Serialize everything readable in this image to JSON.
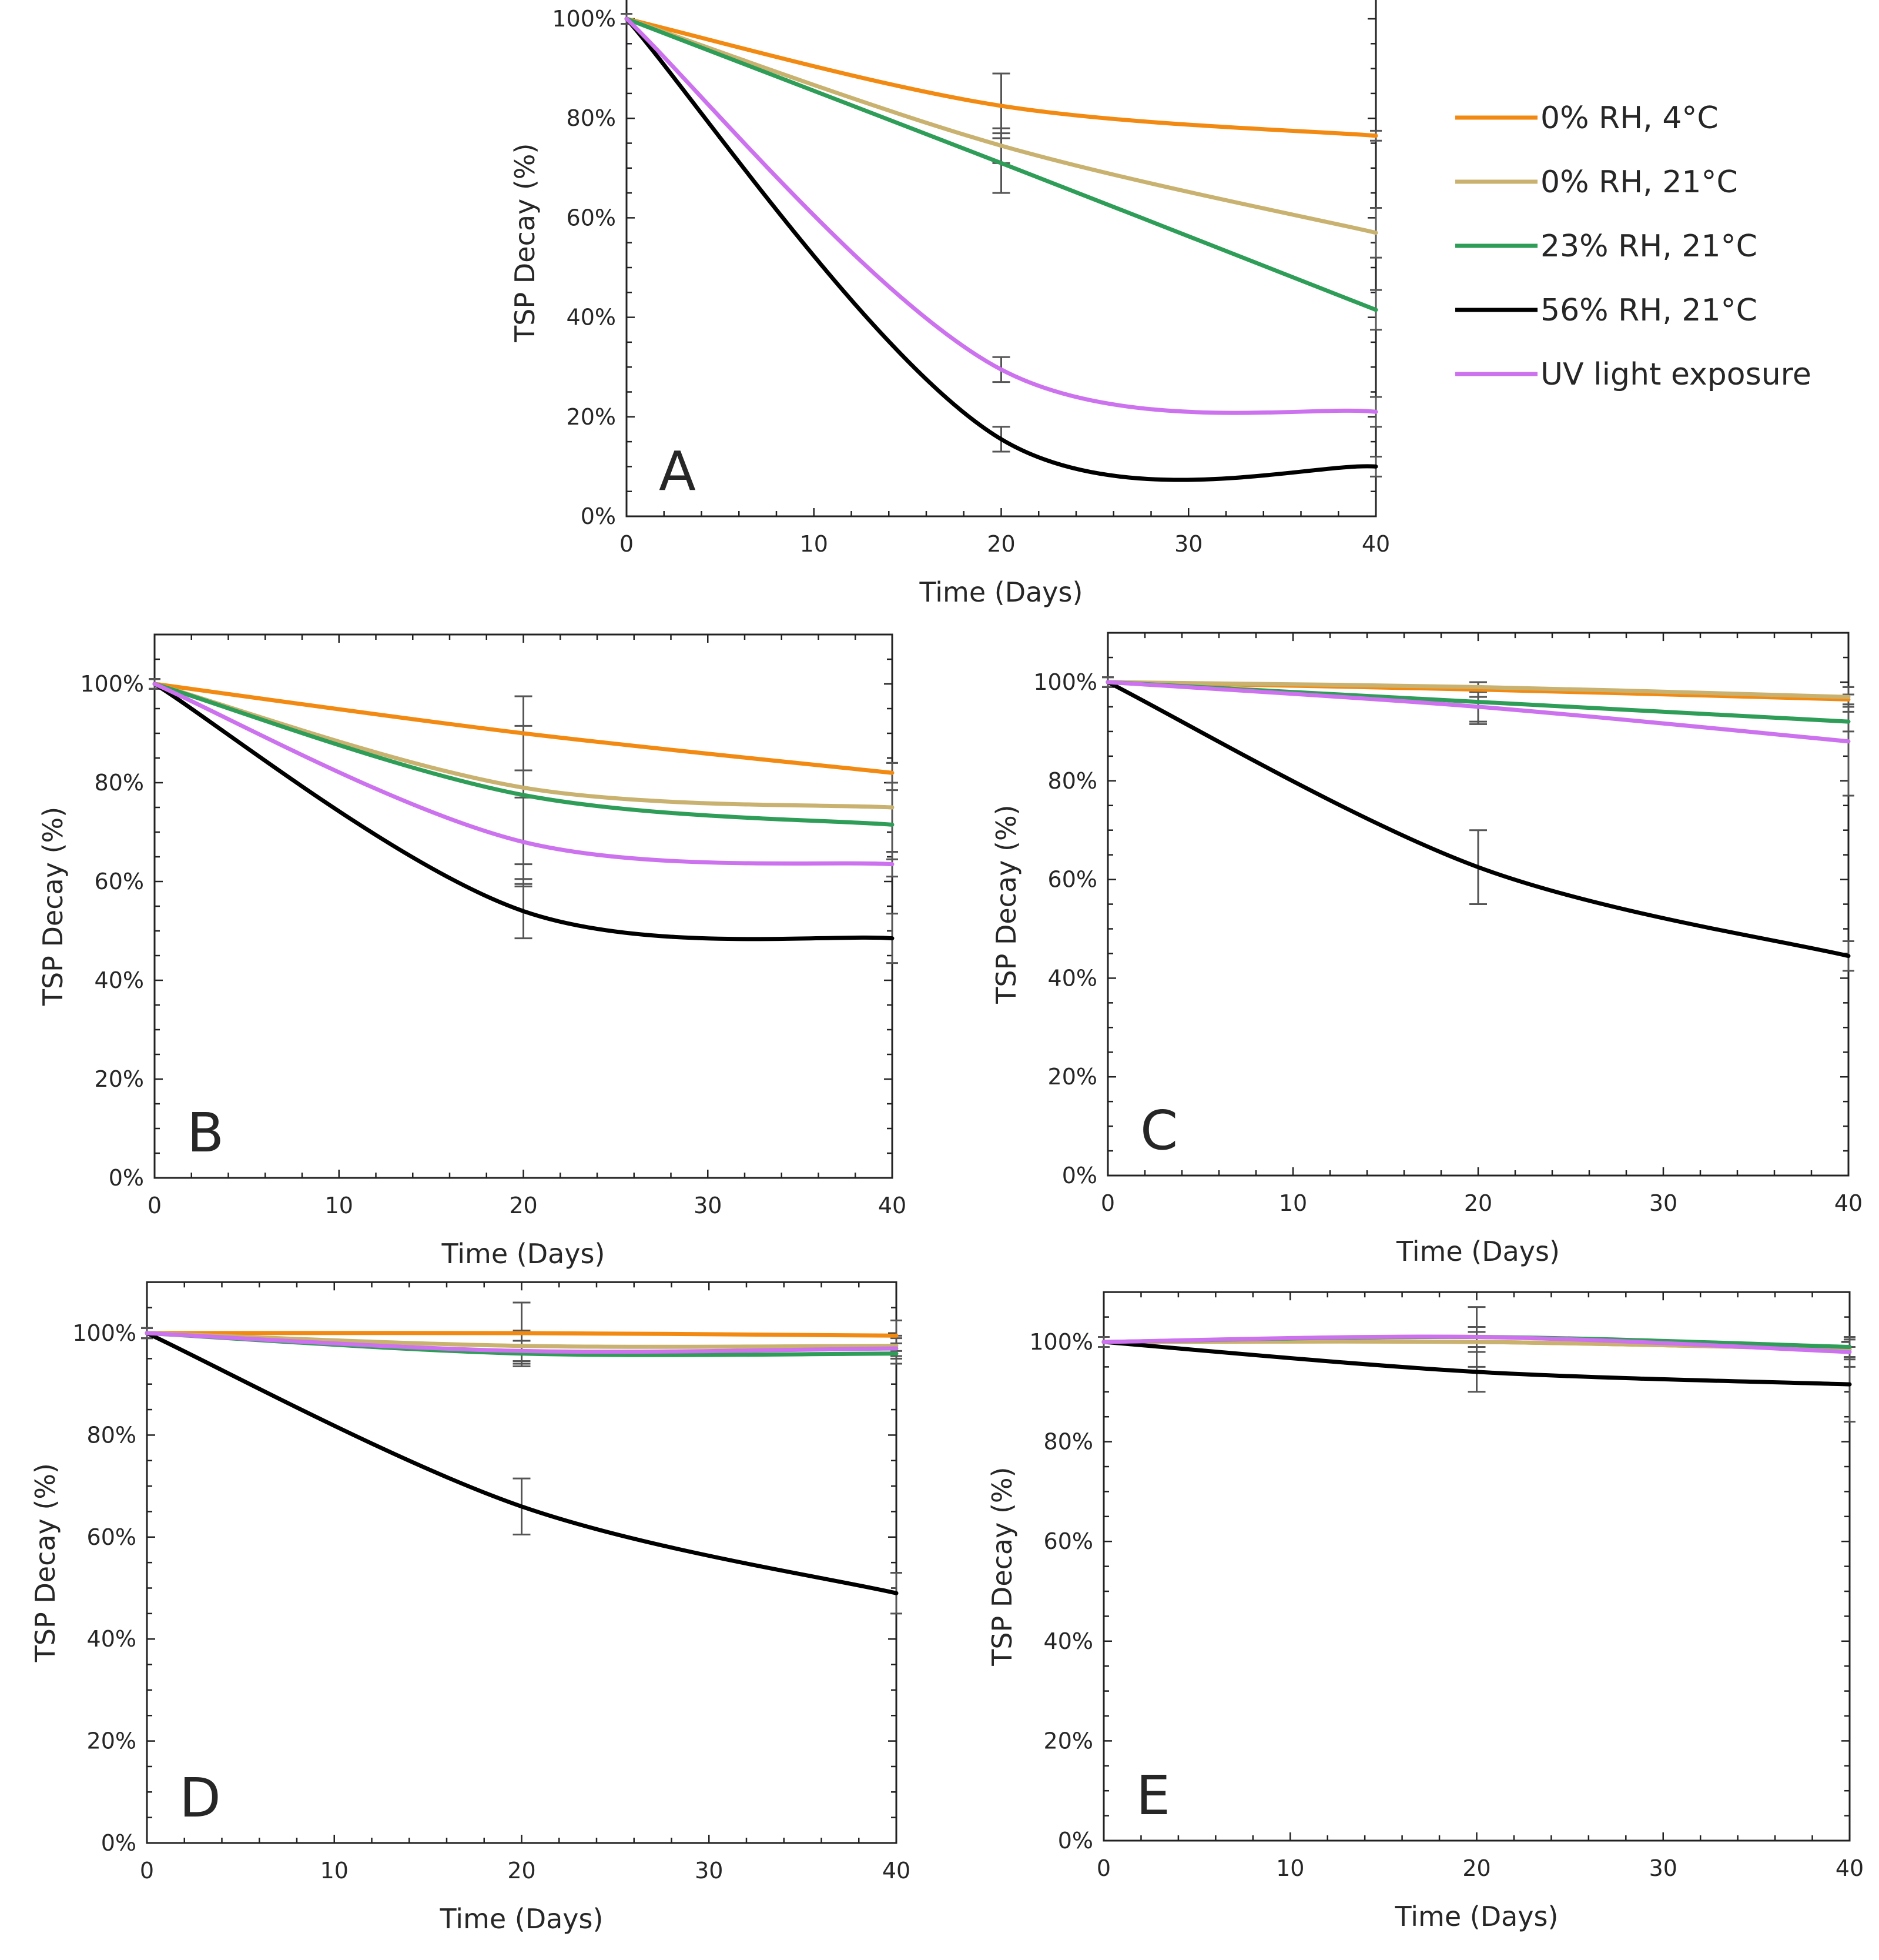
{
  "legend": [
    {
      "key": "rh0_4c",
      "label": "0% RH, 4°C",
      "color": "#f28a12"
    },
    {
      "key": "rh0_21c",
      "label": "0% RH, 21°C",
      "color": "#c9b270"
    },
    {
      "key": "rh23_21c",
      "label": "23% RH, 21°C",
      "color": "#2e9d57"
    },
    {
      "key": "rh56_21c",
      "label": "56% RH, 21°C",
      "color": "#000000"
    },
    {
      "key": "uv",
      "label": "UV light exposure",
      "color": "#cc72ee"
    }
  ],
  "chart_data": [
    {
      "panel": "A",
      "type": "line",
      "xlabel": "Time (Days)",
      "ylabel": "TSP Decay (%)",
      "xlim": [
        0,
        40
      ],
      "ylim": [
        0,
        110
      ],
      "xticks": [
        0,
        10,
        20,
        30,
        40
      ],
      "yticks": [
        0,
        20,
        40,
        60,
        80,
        100
      ],
      "ytick_labels": [
        "0%",
        "20%",
        "40%",
        "60%",
        "80%",
        "100%"
      ],
      "x": [
        0,
        20,
        40
      ],
      "series": [
        {
          "key": "rh0_4c",
          "values": [
            100,
            82.5,
            76.5
          ],
          "errors": [
            1,
            6.5,
            1
          ]
        },
        {
          "key": "rh0_21c",
          "values": [
            100,
            74.5,
            57
          ],
          "errors": [
            1,
            3.5,
            5
          ]
        },
        {
          "key": "rh23_21c",
          "values": [
            100,
            71,
            41.5
          ],
          "errors": [
            1,
            6,
            4
          ]
        },
        {
          "key": "rh56_21c",
          "values": [
            100,
            15.5,
            10
          ],
          "errors": [
            1,
            2.5,
            2
          ]
        },
        {
          "key": "uv",
          "values": [
            100,
            29.5,
            21
          ],
          "errors": [
            1,
            2.5,
            3
          ]
        }
      ]
    },
    {
      "panel": "B",
      "type": "line",
      "xlabel": "Time (Days)",
      "ylabel": "TSP Decay (%)",
      "xlim": [
        0,
        40
      ],
      "ylim": [
        0,
        110
      ],
      "xticks": [
        0,
        10,
        20,
        30,
        40
      ],
      "yticks": [
        0,
        20,
        40,
        60,
        80,
        100
      ],
      "ytick_labels": [
        "0%",
        "20%",
        "40%",
        "60%",
        "80%",
        "100%"
      ],
      "x": [
        0,
        20,
        40
      ],
      "series": [
        {
          "key": "rh0_4c",
          "values": [
            100,
            90,
            82
          ],
          "errors": [
            1,
            7.5,
            2
          ]
        },
        {
          "key": "rh0_21c",
          "values": [
            100,
            79,
            75
          ],
          "errors": [
            1,
            18.5,
            9
          ]
        },
        {
          "key": "rh23_21c",
          "values": [
            100,
            77.5,
            71.5
          ],
          "errors": [
            1,
            14,
            7
          ]
        },
        {
          "key": "rh56_21c",
          "values": [
            100,
            54,
            48.5
          ],
          "errors": [
            1,
            5.5,
            5
          ]
        },
        {
          "key": "uv",
          "values": [
            100,
            68,
            63.5
          ],
          "errors": [
            1,
            9,
            2.5
          ]
        }
      ]
    },
    {
      "panel": "C",
      "type": "line",
      "xlabel": "Time (Days)",
      "ylabel": "TSP Decay (%)",
      "xlim": [
        0,
        40
      ],
      "ylim": [
        0,
        110
      ],
      "xticks": [
        0,
        10,
        20,
        30,
        40
      ],
      "yticks": [
        0,
        20,
        40,
        60,
        80,
        100
      ],
      "ytick_labels": [
        "0%",
        "20%",
        "40%",
        "60%",
        "80%",
        "100%"
      ],
      "x": [
        0,
        20,
        40
      ],
      "series": [
        {
          "key": "rh0_4c",
          "values": [
            100,
            98.5,
            96.5
          ],
          "errors": [
            1,
            1.5,
            1
          ]
        },
        {
          "key": "rh0_21c",
          "values": [
            100,
            99,
            97
          ],
          "errors": [
            1,
            1,
            2
          ]
        },
        {
          "key": "rh23_21c",
          "values": [
            100,
            96,
            92
          ],
          "errors": [
            1,
            4,
            2
          ]
        },
        {
          "key": "rh56_21c",
          "values": [
            100,
            62.5,
            44.5
          ],
          "errors": [
            1,
            7.5,
            3
          ]
        },
        {
          "key": "uv",
          "values": [
            100,
            95,
            88
          ],
          "errors": [
            1,
            3.5,
            11
          ]
        }
      ]
    },
    {
      "panel": "D",
      "type": "line",
      "xlabel": "Time (Days)",
      "ylabel": "TSP Decay (%)",
      "xlim": [
        0,
        40
      ],
      "ylim": [
        0,
        110
      ],
      "xticks": [
        0,
        10,
        20,
        30,
        40
      ],
      "yticks": [
        0,
        20,
        40,
        60,
        80,
        100
      ],
      "ytick_labels": [
        "0%",
        "20%",
        "40%",
        "60%",
        "80%",
        "100%"
      ],
      "x": [
        0,
        20,
        40
      ],
      "series": [
        {
          "key": "rh0_4c",
          "values": [
            100,
            100,
            99.5
          ],
          "errors": [
            1,
            6,
            3
          ]
        },
        {
          "key": "rh0_21c",
          "values": [
            100,
            97.5,
            97.5
          ],
          "errors": [
            1,
            3,
            2
          ]
        },
        {
          "key": "rh23_21c",
          "values": [
            100,
            96,
            96
          ],
          "errors": [
            1,
            2.5,
            2
          ]
        },
        {
          "key": "rh56_21c",
          "values": [
            100,
            66,
            49
          ],
          "errors": [
            1,
            5.5,
            4
          ]
        },
        {
          "key": "uv",
          "values": [
            100,
            96.5,
            97
          ],
          "errors": [
            1,
            2,
            2
          ]
        }
      ]
    },
    {
      "panel": "E",
      "type": "line",
      "xlabel": "Time (Days)",
      "ylabel": "TSP Decay (%)",
      "xlim": [
        0,
        40
      ],
      "ylim": [
        0,
        110
      ],
      "xticks": [
        0,
        10,
        20,
        30,
        40
      ],
      "yticks": [
        0,
        20,
        40,
        60,
        80,
        100
      ],
      "ytick_labels": [
        "0%",
        "20%",
        "40%",
        "60%",
        "80%",
        "100%"
      ],
      "x": [
        0,
        20,
        40
      ],
      "series": [
        {
          "key": "rh0_4c",
          "values": [
            100,
            100,
            98.5
          ],
          "errors": [
            1,
            2,
            2
          ]
        },
        {
          "key": "rh0_21c",
          "values": [
            100,
            100,
            98.5
          ],
          "errors": [
            1,
            2,
            2
          ]
        },
        {
          "key": "rh23_21c",
          "values": [
            100,
            101,
            99
          ],
          "errors": [
            1,
            2,
            2
          ]
        },
        {
          "key": "rh56_21c",
          "values": [
            100,
            94,
            91.5
          ],
          "errors": [
            1,
            4,
            7.5
          ]
        },
        {
          "key": "uv",
          "values": [
            100,
            101,
            98
          ],
          "errors": [
            1,
            6,
            3
          ]
        }
      ]
    }
  ]
}
